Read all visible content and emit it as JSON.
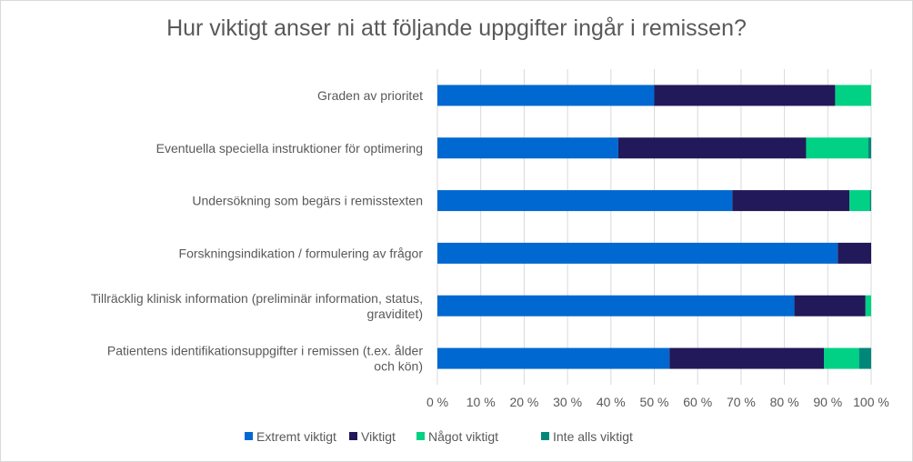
{
  "chart_data": {
    "type": "bar",
    "orientation": "horizontal",
    "stacked": "percent",
    "title": "Hur viktigt anser ni att följande uppgifter ingår i remissen?",
    "categories": [
      [
        "Graden av prioritet"
      ],
      [
        "Eventuella speciella instruktioner för optimering"
      ],
      [
        "Undersökning som begärs i remisstexten"
      ],
      [
        "Forskningsindikation / formulering av frågor"
      ],
      [
        "Tillräcklig klinisk information (preliminär information, status,",
        "graviditet)"
      ],
      [
        "Patientens identifikationsuppgifter i remissen (t.ex. ålder",
        "och kön)"
      ]
    ],
    "series": [
      {
        "name": "Extremt viktigt",
        "color": "#0068D1",
        "values": [
          50.0,
          41.7,
          68.0,
          92.3,
          82.3,
          53.5
        ]
      },
      {
        "name": "Viktigt",
        "color": "#22195A",
        "values": [
          41.7,
          43.3,
          27.0,
          7.7,
          16.4,
          35.6
        ]
      },
      {
        "name": "Något viktigt",
        "color": "#00D184",
        "values": [
          8.3,
          14.3,
          4.7,
          0,
          1.3,
          8.1
        ]
      },
      {
        "name": "Inte alls viktigt",
        "color": "#00877A",
        "values": [
          0,
          0.7,
          0.3,
          0,
          0,
          2.8
        ]
      }
    ],
    "xlim": [
      0,
      100
    ],
    "xticks": [
      "0 %",
      "10 %",
      "20 %",
      "30 %",
      "40 %",
      "50 %",
      "60 %",
      "70 %",
      "80 %",
      "90 %",
      "100 %"
    ],
    "grid": true,
    "legend": "bottom"
  }
}
